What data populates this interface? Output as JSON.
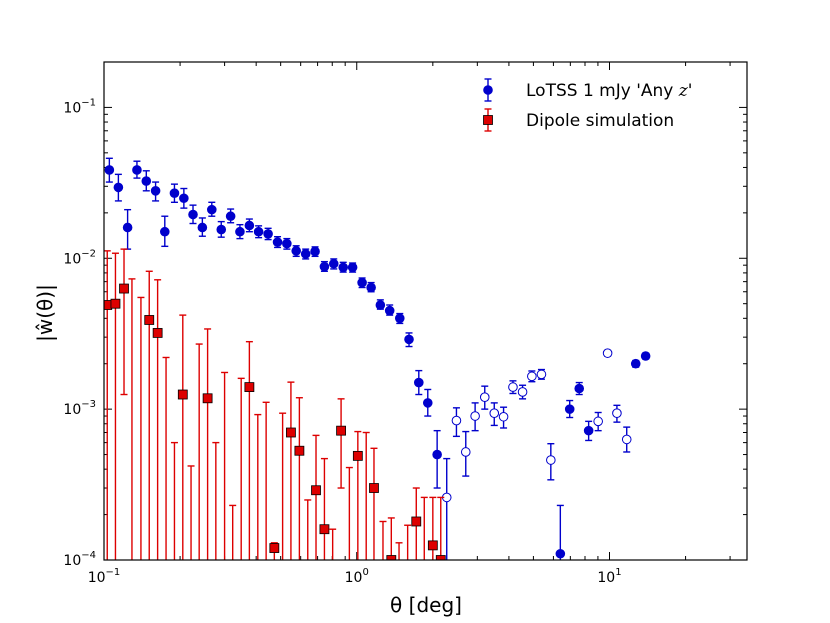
{
  "chart_data": {
    "type": "scatter",
    "xscale": "log",
    "yscale": "log",
    "xlim": [
      0.1,
      35
    ],
    "ylim": [
      0.0001,
      0.2
    ],
    "xlabel": "θ [deg]",
    "ylabel": "|ŵ(θ)|",
    "x_ticks": [
      {
        "value": 0.1,
        "mant": "10",
        "exp": "−1"
      },
      {
        "value": 1,
        "mant": "10",
        "exp": "0"
      },
      {
        "value": 10,
        "mant": "10",
        "exp": "1"
      }
    ],
    "y_ticks": [
      {
        "value": 0.0001,
        "mant": "10",
        "exp": "−4"
      },
      {
        "value": 0.001,
        "mant": "10",
        "exp": "−3"
      },
      {
        "value": 0.01,
        "mant": "10",
        "exp": "−2"
      },
      {
        "value": 0.1,
        "mant": "10",
        "exp": "−1"
      }
    ],
    "legend": {
      "position": "top-right"
    },
    "series": [
      {
        "name": "LoTSS 1 mJy 'Any z'",
        "legend_text": "LoTSS 1 mJy 'Any ",
        "legend_italic": "z",
        "legend_suffix": "'",
        "color": "#0000cc",
        "marker": "circle",
        "points": [
          {
            "x": 0.105,
            "y": 0.0385,
            "lo": 0.032,
            "hi": 0.046,
            "filled": true
          },
          {
            "x": 0.114,
            "y": 0.0295,
            "lo": 0.024,
            "hi": 0.036,
            "filled": true
          },
          {
            "x": 0.124,
            "y": 0.016,
            "lo": 0.0115,
            "hi": 0.021,
            "filled": true
          },
          {
            "x": 0.135,
            "y": 0.0385,
            "lo": 0.034,
            "hi": 0.044,
            "filled": true
          },
          {
            "x": 0.147,
            "y": 0.0325,
            "lo": 0.028,
            "hi": 0.038,
            "filled": true
          },
          {
            "x": 0.16,
            "y": 0.028,
            "lo": 0.024,
            "hi": 0.032,
            "filled": true
          },
          {
            "x": 0.174,
            "y": 0.015,
            "lo": 0.012,
            "hi": 0.019,
            "filled": true
          },
          {
            "x": 0.19,
            "y": 0.027,
            "lo": 0.0235,
            "hi": 0.031,
            "filled": true
          },
          {
            "x": 0.207,
            "y": 0.025,
            "lo": 0.0215,
            "hi": 0.029,
            "filled": true
          },
          {
            "x": 0.225,
            "y": 0.0195,
            "lo": 0.017,
            "hi": 0.0225,
            "filled": true
          },
          {
            "x": 0.245,
            "y": 0.016,
            "lo": 0.014,
            "hi": 0.0185,
            "filled": true
          },
          {
            "x": 0.267,
            "y": 0.021,
            "lo": 0.019,
            "hi": 0.0235,
            "filled": true
          },
          {
            "x": 0.291,
            "y": 0.0155,
            "lo": 0.0138,
            "hi": 0.0175,
            "filled": true
          },
          {
            "x": 0.317,
            "y": 0.019,
            "lo": 0.0172,
            "hi": 0.0212,
            "filled": true
          },
          {
            "x": 0.345,
            "y": 0.015,
            "lo": 0.0135,
            "hi": 0.0167,
            "filled": true
          },
          {
            "x": 0.376,
            "y": 0.0165,
            "lo": 0.015,
            "hi": 0.0182,
            "filled": true
          },
          {
            "x": 0.409,
            "y": 0.015,
            "lo": 0.0137,
            "hi": 0.0164,
            "filled": true
          },
          {
            "x": 0.446,
            "y": 0.0145,
            "lo": 0.0133,
            "hi": 0.0158,
            "filled": true
          },
          {
            "x": 0.486,
            "y": 0.0128,
            "lo": 0.0118,
            "hi": 0.0139,
            "filled": true
          },
          {
            "x": 0.529,
            "y": 0.0125,
            "lo": 0.0115,
            "hi": 0.0135,
            "filled": true
          },
          {
            "x": 0.576,
            "y": 0.0112,
            "lo": 0.0103,
            "hi": 0.0121,
            "filled": true
          },
          {
            "x": 0.628,
            "y": 0.0107,
            "lo": 0.0099,
            "hi": 0.0115,
            "filled": true
          },
          {
            "x": 0.684,
            "y": 0.0111,
            "lo": 0.0103,
            "hi": 0.0119,
            "filled": true
          },
          {
            "x": 0.745,
            "y": 0.0088,
            "lo": 0.0082,
            "hi": 0.0095,
            "filled": true
          },
          {
            "x": 0.811,
            "y": 0.0092,
            "lo": 0.0085,
            "hi": 0.0099,
            "filled": true
          },
          {
            "x": 0.884,
            "y": 0.0087,
            "lo": 0.0081,
            "hi": 0.0094,
            "filled": true
          },
          {
            "x": 0.963,
            "y": 0.0087,
            "lo": 0.0081,
            "hi": 0.0093,
            "filled": true
          },
          {
            "x": 1.05,
            "y": 0.0069,
            "lo": 0.0064,
            "hi": 0.0074,
            "filled": true
          },
          {
            "x": 1.14,
            "y": 0.0064,
            "lo": 0.006,
            "hi": 0.0069,
            "filled": true
          },
          {
            "x": 1.24,
            "y": 0.0049,
            "lo": 0.0046,
            "hi": 0.0053,
            "filled": true
          },
          {
            "x": 1.35,
            "y": 0.0045,
            "lo": 0.0042,
            "hi": 0.0049,
            "filled": true
          },
          {
            "x": 1.48,
            "y": 0.004,
            "lo": 0.0037,
            "hi": 0.0043,
            "filled": true
          },
          {
            "x": 1.61,
            "y": 0.0029,
            "lo": 0.0026,
            "hi": 0.0032,
            "filled": true
          },
          {
            "x": 1.76,
            "y": 0.0015,
            "lo": 0.00125,
            "hi": 0.0018,
            "filled": true
          },
          {
            "x": 1.91,
            "y": 0.0011,
            "lo": 0.0009,
            "hi": 0.00135,
            "filled": true
          },
          {
            "x": 2.08,
            "y": 0.0005,
            "lo": 0.0003,
            "hi": 0.00072,
            "filled": true
          },
          {
            "x": 2.27,
            "y": 0.00026,
            "lo": 0.0001,
            "hi": 0.00047,
            "filled": false
          },
          {
            "x": 2.48,
            "y": 0.00084,
            "lo": 0.00066,
            "hi": 0.00102,
            "filled": false
          },
          {
            "x": 2.7,
            "y": 0.00052,
            "lo": 0.00036,
            "hi": 0.00071,
            "filled": false
          },
          {
            "x": 2.94,
            "y": 0.0009,
            "lo": 0.00072,
            "hi": 0.0011,
            "filled": false
          },
          {
            "x": 3.21,
            "y": 0.0012,
            "lo": 0.001,
            "hi": 0.00142,
            "filled": false
          },
          {
            "x": 3.5,
            "y": 0.00094,
            "lo": 0.00078,
            "hi": 0.0011,
            "filled": false
          },
          {
            "x": 3.81,
            "y": 0.00089,
            "lo": 0.00075,
            "hi": 0.00103,
            "filled": false
          },
          {
            "x": 4.15,
            "y": 0.0014,
            "lo": 0.00127,
            "hi": 0.00154,
            "filled": false
          },
          {
            "x": 4.53,
            "y": 0.0013,
            "lo": 0.00117,
            "hi": 0.00144,
            "filled": false
          },
          {
            "x": 4.93,
            "y": 0.00165,
            "lo": 0.00152,
            "hi": 0.00179,
            "filled": false
          },
          {
            "x": 5.38,
            "y": 0.0017,
            "lo": 0.00158,
            "hi": 0.00183,
            "filled": false
          },
          {
            "x": 5.86,
            "y": 0.00046,
            "lo": 0.00034,
            "hi": 0.00059,
            "filled": false
          },
          {
            "x": 6.39,
            "y": 0.00011,
            "lo": 0.0001,
            "hi": 0.00023,
            "filled": true
          },
          {
            "x": 6.96,
            "y": 0.001,
            "lo": 0.00088,
            "hi": 0.00114,
            "filled": true
          },
          {
            "x": 7.59,
            "y": 0.00137,
            "lo": 0.00125,
            "hi": 0.0015,
            "filled": true
          },
          {
            "x": 8.27,
            "y": 0.00072,
            "lo": 0.00062,
            "hi": 0.00083,
            "filled": true
          },
          {
            "x": 9.02,
            "y": 0.00083,
            "lo": 0.00072,
            "hi": 0.00095,
            "filled": false
          },
          {
            "x": 9.83,
            "y": 0.00235,
            "lo": 0.00225,
            "hi": 0.00245,
            "filled": false
          },
          {
            "x": 10.7,
            "y": 0.00094,
            "lo": 0.00082,
            "hi": 0.00106,
            "filled": false
          },
          {
            "x": 11.7,
            "y": 0.00063,
            "lo": 0.00052,
            "hi": 0.00076,
            "filled": false
          },
          {
            "x": 12.7,
            "y": 0.002,
            "lo": 0.0019,
            "hi": 0.0021,
            "filled": true
          },
          {
            "x": 13.9,
            "y": 0.00225,
            "lo": 0.00215,
            "hi": 0.00235,
            "filled": true
          }
        ]
      },
      {
        "name": "Dipole simulation",
        "legend_text": "Dipole simulation",
        "legend_italic": "",
        "legend_suffix": "",
        "color": "#dd0000",
        "marker": "square",
        "points": [
          {
            "x": 0.103,
            "y": 0.0049,
            "lo": 0.0001,
            "hi": 0.0112
          },
          {
            "x": 0.111,
            "y": 0.005,
            "lo": 0.0001,
            "hi": 0.0108
          },
          {
            "x": 0.12,
            "y": 0.0063,
            "lo": 0.00125,
            "hi": 0.0115
          },
          {
            "x": 0.129,
            "y": null,
            "lo": 0.0001,
            "hi": 0.0073
          },
          {
            "x": 0.14,
            "y": null,
            "lo": 0.0001,
            "hi": 0.0055
          },
          {
            "x": 0.151,
            "y": 0.0039,
            "lo": 0.0001,
            "hi": 0.0082
          },
          {
            "x": 0.163,
            "y": 0.0032,
            "lo": 0.0001,
            "hi": 0.0072
          },
          {
            "x": 0.176,
            "y": null,
            "lo": 0.0001,
            "hi": 0.0022
          },
          {
            "x": 0.19,
            "y": null,
            "lo": 0.0001,
            "hi": 0.0006
          },
          {
            "x": 0.205,
            "y": 0.00125,
            "lo": 0.0001,
            "hi": 0.0042
          },
          {
            "x": 0.221,
            "y": null,
            "lo": 0.0001,
            "hi": 0.00042
          },
          {
            "x": 0.238,
            "y": null,
            "lo": 0.0001,
            "hi": 0.0027
          },
          {
            "x": 0.257,
            "y": 0.00118,
            "lo": 0.0001,
            "hi": 0.0034
          },
          {
            "x": 0.277,
            "y": null,
            "lo": 0.0001,
            "hi": 0.0006
          },
          {
            "x": 0.3,
            "y": null,
            "lo": 0.0001,
            "hi": 0.00175
          },
          {
            "x": 0.323,
            "y": null,
            "lo": 0.0001,
            "hi": 0.00023
          },
          {
            "x": 0.349,
            "y": null,
            "lo": 0.0001,
            "hi": 0.0016
          },
          {
            "x": 0.376,
            "y": 0.0014,
            "lo": 0.0001,
            "hi": 0.0028
          },
          {
            "x": 0.406,
            "y": null,
            "lo": 0.0001,
            "hi": 0.00092
          },
          {
            "x": 0.438,
            "y": null,
            "lo": 0.0001,
            "hi": 0.00111
          },
          {
            "x": 0.472,
            "y": 0.00012,
            "lo": 0.0001,
            "hi": 0.00013
          },
          {
            "x": 0.509,
            "y": null,
            "lo": 0.0001,
            "hi": 0.00094
          },
          {
            "x": 0.549,
            "y": 0.0007,
            "lo": 0.0001,
            "hi": 0.00151
          },
          {
            "x": 0.593,
            "y": 0.00053,
            "lo": 0.0001,
            "hi": 0.00119
          },
          {
            "x": 0.64,
            "y": null,
            "lo": 0.0001,
            "hi": 0.00025
          },
          {
            "x": 0.69,
            "y": 0.00029,
            "lo": 0.0001,
            "hi": 0.00067
          },
          {
            "x": 0.745,
            "y": 0.00016,
            "lo": 0.0001,
            "hi": 0.00047
          },
          {
            "x": 0.803,
            "y": null,
            "lo": 0.0001,
            "hi": 0.00016
          },
          {
            "x": 0.867,
            "y": 0.00072,
            "lo": 0.0003,
            "hi": 0.00117
          },
          {
            "x": 0.935,
            "y": null,
            "lo": 0.0001,
            "hi": 0.00041
          },
          {
            "x": 1.01,
            "y": 0.00049,
            "lo": 0.0001,
            "hi": 0.00071
          },
          {
            "x": 1.09,
            "y": null,
            "lo": 0.0001,
            "hi": 0.0007
          },
          {
            "x": 1.17,
            "y": 0.0003,
            "lo": 0.0001,
            "hi": 0.00055
          },
          {
            "x": 1.27,
            "y": null,
            "lo": 0.0001,
            "hi": 0.00018
          },
          {
            "x": 1.37,
            "y": 0.0001,
            "lo": 0.0001,
            "hi": 0.00019
          },
          {
            "x": 1.47,
            "y": null,
            "lo": 0.0001,
            "hi": 0.00013
          },
          {
            "x": 1.59,
            "y": null,
            "lo": 0.0001,
            "hi": 0.00017
          },
          {
            "x": 1.72,
            "y": 0.00018,
            "lo": 0.0001,
            "hi": 0.0003
          },
          {
            "x": 1.85,
            "y": null,
            "lo": 0.0001,
            "hi": 0.00026
          },
          {
            "x": 2.0,
            "y": 0.000125,
            "lo": 0.0001,
            "hi": 0.00026
          },
          {
            "x": 2.15,
            "y": 0.0001,
            "lo": 0.0001,
            "hi": 0.00026
          }
        ]
      }
    ]
  }
}
